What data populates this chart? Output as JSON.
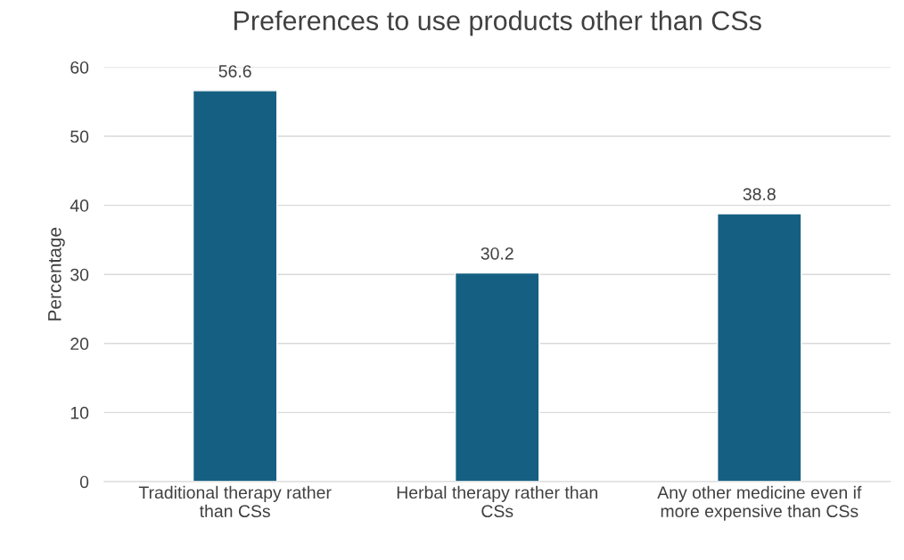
{
  "chart_data": {
    "type": "bar",
    "title": "Preferences to use products other than CSs",
    "ylabel": "Percentage",
    "categories": [
      "Traditional therapy rather than CSs",
      "Herbal therapy rather than CSs",
      "Any other medicine even if more expensive than CSs"
    ],
    "values": [
      56.6,
      30.2,
      38.8
    ],
    "color": "#156082",
    "ylim": [
      0,
      60
    ],
    "yticks": [
      0,
      10,
      20,
      30,
      40,
      50,
      60
    ],
    "grid": "y",
    "data_labels": true
  }
}
